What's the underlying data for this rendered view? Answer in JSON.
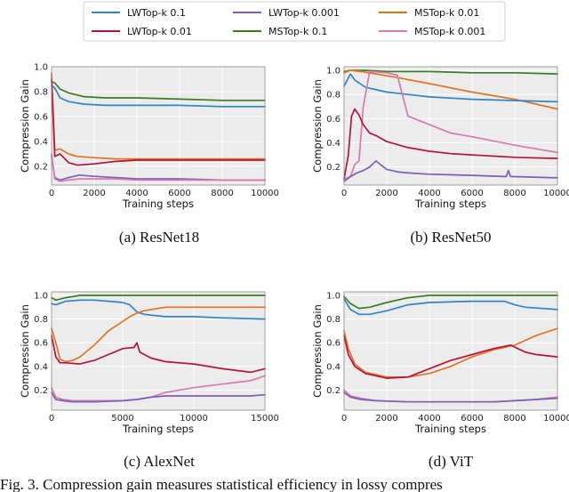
{
  "colors": {
    "LWTop-k 0.1": "#2e86c8",
    "LWTop-k 0.01": "#b5153b",
    "LWTop-k 0.001": "#7b5fb8",
    "MSTop-k 0.1": "#3a7d22",
    "MSTop-k 0.01": "#e3731f",
    "MSTop-k 0.001": "#d77aae"
  },
  "legend": {
    "entries": [
      "LWTop-k 0.1",
      "LWTop-k 0.01",
      "LWTop-k 0.001",
      "MSTop-k 0.1",
      "MSTop-k 0.01",
      "MSTop-k 0.001"
    ]
  },
  "figure_caption": "Fig. 3. Compression gain measures statistical efficiency in lossy compres",
  "chart_data": [
    {
      "type": "line",
      "caption": "(a)  ResNet18",
      "xlabel": "Training steps",
      "ylabel": "Compression Gain",
      "xlim": [
        0,
        10000
      ],
      "ylim": [
        0.05,
        1.0
      ],
      "xticks": [
        0,
        2000,
        4000,
        6000,
        8000,
        10000
      ],
      "yticks": [
        0.2,
        0.4,
        0.6,
        0.8,
        1.0
      ],
      "series": [
        {
          "name": "MSTop-k 0.1",
          "x": [
            0,
            150,
            400,
            800,
            1500,
            2500,
            4000,
            6000,
            8000,
            10000
          ],
          "y": [
            0.88,
            0.87,
            0.82,
            0.79,
            0.76,
            0.75,
            0.75,
            0.74,
            0.73,
            0.73
          ]
        },
        {
          "name": "LWTop-k 0.1",
          "x": [
            0,
            150,
            400,
            800,
            1500,
            2500,
            4000,
            6000,
            8000,
            10000
          ],
          "y": [
            0.85,
            0.83,
            0.75,
            0.72,
            0.7,
            0.69,
            0.69,
            0.69,
            0.68,
            0.68
          ]
        },
        {
          "name": "MSTop-k 0.01",
          "x": [
            0,
            150,
            400,
            800,
            1200,
            2000,
            3000,
            4000,
            6000,
            8000,
            10000
          ],
          "y": [
            0.95,
            0.33,
            0.34,
            0.3,
            0.28,
            0.27,
            0.26,
            0.26,
            0.26,
            0.26,
            0.26
          ]
        },
        {
          "name": "LWTop-k 0.01",
          "x": [
            0,
            150,
            400,
            800,
            1200,
            2000,
            3000,
            4000,
            6000,
            8000,
            10000
          ],
          "y": [
            0.9,
            0.28,
            0.3,
            0.23,
            0.21,
            0.22,
            0.24,
            0.25,
            0.25,
            0.25,
            0.25
          ]
        },
        {
          "name": "LWTop-k 0.001",
          "x": [
            0,
            150,
            400,
            800,
            1300,
            2000,
            3000,
            4000,
            6000,
            8000,
            10000
          ],
          "y": [
            0.28,
            0.11,
            0.09,
            0.11,
            0.13,
            0.12,
            0.11,
            0.1,
            0.1,
            0.09,
            0.09
          ]
        },
        {
          "name": "MSTop-k 0.001",
          "x": [
            0,
            150,
            400,
            800,
            1300,
            2000,
            3000,
            4000,
            6000,
            8000,
            10000
          ],
          "y": [
            0.3,
            0.1,
            0.08,
            0.09,
            0.1,
            0.1,
            0.1,
            0.09,
            0.09,
            0.09,
            0.09
          ]
        }
      ]
    },
    {
      "type": "line",
      "caption": "(b)  ResNet50",
      "xlabel": "Training steps",
      "ylabel": "Compression Gain",
      "xlim": [
        0,
        10000
      ],
      "ylim": [
        0.05,
        1.03
      ],
      "xticks": [
        0,
        2000,
        4000,
        6000,
        8000,
        10000
      ],
      "yticks": [
        0.2,
        0.4,
        0.6,
        0.8,
        1.0
      ],
      "series": [
        {
          "name": "MSTop-k 0.1",
          "x": [
            0,
            300,
            1000,
            2000,
            4000,
            6000,
            8000,
            10000
          ],
          "y": [
            0.99,
            1.0,
            1.0,
            0.99,
            0.99,
            0.98,
            0.98,
            0.97
          ]
        },
        {
          "name": "MSTop-k 0.01",
          "x": [
            0,
            300,
            800,
            1500,
            2500,
            4000,
            6000,
            8000,
            10000
          ],
          "y": [
            0.98,
            1.0,
            0.99,
            0.97,
            0.94,
            0.89,
            0.82,
            0.76,
            0.68
          ]
        },
        {
          "name": "LWTop-k 0.1",
          "x": [
            0,
            300,
            500,
            1000,
            2000,
            3000,
            4000,
            6000,
            8000,
            10000
          ],
          "y": [
            0.87,
            0.97,
            0.92,
            0.86,
            0.82,
            0.8,
            0.78,
            0.76,
            0.75,
            0.74
          ]
        },
        {
          "name": "MSTop-k 0.001",
          "x": [
            0,
            300,
            500,
            700,
            900,
            1200,
            2000,
            2500,
            2700,
            3000,
            4000,
            5000,
            6000,
            8000,
            10000
          ],
          "y": [
            0.1,
            0.12,
            0.22,
            0.25,
            0.7,
            0.99,
            0.98,
            0.96,
            0.82,
            0.62,
            0.55,
            0.48,
            0.45,
            0.38,
            0.32
          ]
        },
        {
          "name": "LWTop-k 0.01",
          "x": [
            0,
            200,
            350,
            500,
            700,
            900,
            1200,
            1500,
            2000,
            3000,
            4000,
            5000,
            6000,
            8000,
            10000
          ],
          "y": [
            0.1,
            0.3,
            0.62,
            0.68,
            0.63,
            0.55,
            0.48,
            0.46,
            0.41,
            0.36,
            0.33,
            0.31,
            0.3,
            0.28,
            0.27
          ]
        },
        {
          "name": "LWTop-k 0.001",
          "x": [
            0,
            300,
            600,
            900,
            1200,
            1500,
            1700,
            2000,
            2500,
            3000,
            4000,
            6000,
            7600,
            7700,
            7800,
            8000,
            10000
          ],
          "y": [
            0.08,
            0.12,
            0.15,
            0.17,
            0.2,
            0.25,
            0.22,
            0.18,
            0.16,
            0.15,
            0.14,
            0.13,
            0.12,
            0.17,
            0.12,
            0.12,
            0.11
          ]
        }
      ]
    },
    {
      "type": "line",
      "caption": "(c)  AlexNet",
      "xlabel": "Training steps",
      "ylabel": "Compression Gain",
      "xlim": [
        0,
        15000
      ],
      "ylim": [
        0.03,
        1.03
      ],
      "xticks": [
        0,
        5000,
        10000,
        15000
      ],
      "yticks": [
        0.2,
        0.4,
        0.6,
        0.8,
        1.0
      ],
      "series": [
        {
          "name": "MSTop-k 0.1",
          "x": [
            0,
            300,
            1000,
            2000,
            4000,
            6000,
            8000,
            10000,
            12000,
            15000
          ],
          "y": [
            0.98,
            0.96,
            0.98,
            1.0,
            1.0,
            1.0,
            1.0,
            1.0,
            1.0,
            1.0
          ]
        },
        {
          "name": "LWTop-k 0.1",
          "x": [
            0,
            300,
            1000,
            2000,
            3000,
            4000,
            5000,
            5500,
            6000,
            6500,
            8000,
            10000,
            12000,
            15000
          ],
          "y": [
            0.93,
            0.92,
            0.95,
            0.96,
            0.96,
            0.95,
            0.94,
            0.92,
            0.86,
            0.84,
            0.82,
            0.82,
            0.81,
            0.8
          ]
        },
        {
          "name": "MSTop-k 0.01",
          "x": [
            0,
            300,
            600,
            1000,
            1500,
            2000,
            3000,
            4000,
            5000,
            5500,
            6000,
            6500,
            7000,
            8000,
            10000,
            12000,
            15000
          ],
          "y": [
            0.72,
            0.6,
            0.46,
            0.44,
            0.45,
            0.48,
            0.58,
            0.7,
            0.78,
            0.82,
            0.85,
            0.87,
            0.88,
            0.9,
            0.9,
            0.9,
            0.9
          ]
        },
        {
          "name": "LWTop-k 0.01",
          "x": [
            0,
            300,
            600,
            1000,
            2000,
            3000,
            4000,
            5000,
            5800,
            6000,
            6200,
            7000,
            8000,
            10000,
            12000,
            14000,
            15000
          ],
          "y": [
            0.66,
            0.48,
            0.43,
            0.43,
            0.42,
            0.45,
            0.5,
            0.55,
            0.56,
            0.6,
            0.52,
            0.47,
            0.44,
            0.42,
            0.38,
            0.35,
            0.38
          ]
        },
        {
          "name": "MSTop-k 0.001",
          "x": [
            0,
            300,
            800,
            1500,
            3000,
            5000,
            6000,
            7000,
            8000,
            10000,
            12000,
            14000,
            15000
          ],
          "y": [
            0.22,
            0.14,
            0.12,
            0.11,
            0.11,
            0.11,
            0.12,
            0.14,
            0.18,
            0.22,
            0.25,
            0.28,
            0.32
          ]
        },
        {
          "name": "LWTop-k 0.001",
          "x": [
            0,
            300,
            800,
            1500,
            3000,
            5000,
            6000,
            7000,
            8000,
            10000,
            12000,
            14000,
            15000
          ],
          "y": [
            0.18,
            0.12,
            0.11,
            0.1,
            0.1,
            0.11,
            0.12,
            0.14,
            0.15,
            0.15,
            0.15,
            0.15,
            0.16
          ]
        }
      ]
    },
    {
      "type": "line",
      "caption": "(d)  ViT",
      "xlabel": "Training steps",
      "ylabel": "Compression Gain",
      "xlim": [
        0,
        10000
      ],
      "ylim": [
        0.03,
        1.03
      ],
      "xticks": [
        0,
        2000,
        4000,
        6000,
        8000,
        10000
      ],
      "yticks": [
        0.2,
        0.4,
        0.6,
        0.8,
        1.0
      ],
      "series": [
        {
          "name": "MSTop-k 0.1",
          "x": [
            0,
            300,
            700,
            1200,
            2000,
            3000,
            4000,
            6000,
            8000,
            10000
          ],
          "y": [
            0.99,
            0.93,
            0.89,
            0.9,
            0.94,
            0.98,
            1.0,
            1.0,
            1.0,
            1.0
          ]
        },
        {
          "name": "LWTop-k 0.1",
          "x": [
            0,
            300,
            700,
            1200,
            2000,
            3000,
            4000,
            6000,
            7500,
            8000,
            8500,
            10000
          ],
          "y": [
            0.97,
            0.88,
            0.84,
            0.84,
            0.87,
            0.92,
            0.94,
            0.95,
            0.95,
            0.92,
            0.9,
            0.88
          ]
        },
        {
          "name": "MSTop-k 0.01",
          "x": [
            0,
            200,
            500,
            1000,
            2000,
            3000,
            4000,
            5000,
            6000,
            7000,
            8000,
            9000,
            10000
          ],
          "y": [
            0.7,
            0.55,
            0.42,
            0.35,
            0.31,
            0.31,
            0.34,
            0.4,
            0.48,
            0.54,
            0.58,
            0.66,
            0.72
          ]
        },
        {
          "name": "LWTop-k 0.01",
          "x": [
            0,
            200,
            500,
            1000,
            2000,
            3000,
            4000,
            5000,
            6000,
            7000,
            7800,
            8500,
            9000,
            10000
          ],
          "y": [
            0.66,
            0.5,
            0.4,
            0.34,
            0.3,
            0.31,
            0.38,
            0.45,
            0.5,
            0.55,
            0.58,
            0.52,
            0.5,
            0.48
          ]
        },
        {
          "name": "MSTop-k 0.001",
          "x": [
            0,
            300,
            800,
            1500,
            3000,
            5000,
            7000,
            8000,
            9000,
            10000
          ],
          "y": [
            0.2,
            0.15,
            0.13,
            0.11,
            0.1,
            0.1,
            0.1,
            0.11,
            0.12,
            0.14
          ]
        },
        {
          "name": "LWTop-k 0.001",
          "x": [
            0,
            300,
            800,
            1500,
            3000,
            5000,
            7000,
            8000,
            9000,
            10000
          ],
          "y": [
            0.18,
            0.14,
            0.12,
            0.11,
            0.1,
            0.1,
            0.1,
            0.11,
            0.12,
            0.13
          ]
        }
      ]
    }
  ]
}
